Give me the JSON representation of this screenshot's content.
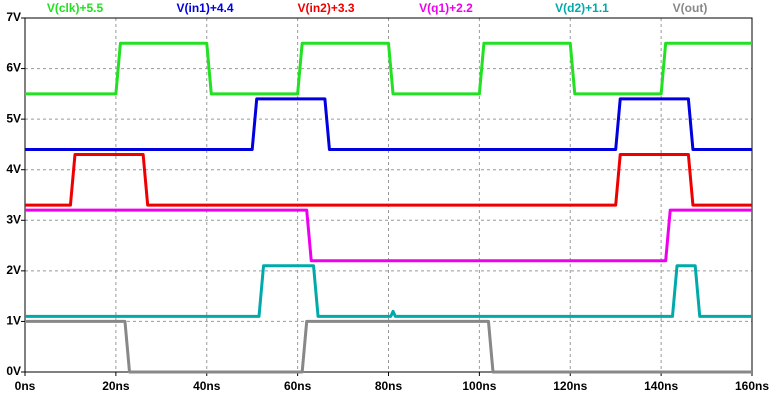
{
  "chart_data": {
    "type": "line",
    "xlim": [
      0,
      160
    ],
    "xticks": [
      {
        "value": 0,
        "label": "0ns"
      },
      {
        "value": 20,
        "label": "20ns"
      },
      {
        "value": 40,
        "label": "40ns"
      },
      {
        "value": 60,
        "label": "60ns"
      },
      {
        "value": 80,
        "label": "80ns"
      },
      {
        "value": 100,
        "label": "100ns"
      },
      {
        "value": 120,
        "label": "120ns"
      },
      {
        "value": 140,
        "label": "140ns"
      },
      {
        "value": 160,
        "label": "160ns"
      }
    ],
    "ylim": [
      0,
      7
    ],
    "yticks": [
      {
        "value": 0,
        "label": "0V"
      },
      {
        "value": 1,
        "label": "1V"
      },
      {
        "value": 2,
        "label": "2V"
      },
      {
        "value": 3,
        "label": "3V"
      },
      {
        "value": 4,
        "label": "4V"
      },
      {
        "value": 5,
        "label": "5V"
      },
      {
        "value": 6,
        "label": "6V"
      },
      {
        "value": 7,
        "label": "7V"
      }
    ],
    "grid": true,
    "series": [
      {
        "name": "V(clk)+5.5",
        "color": "#22e022",
        "x": [
          0,
          20,
          21,
          40,
          41,
          60,
          61,
          80,
          81,
          100,
          101,
          120,
          121,
          140,
          141,
          160
        ],
        "values": [
          5.5,
          5.5,
          6.5,
          6.5,
          5.5,
          5.5,
          6.5,
          6.5,
          5.5,
          5.5,
          6.5,
          6.5,
          5.5,
          5.5,
          6.5,
          6.5
        ]
      },
      {
        "name": "V(in1)+4.4",
        "color": "#0000e0",
        "x": [
          0,
          50,
          51,
          66,
          67,
          130,
          131,
          146,
          147,
          160
        ],
        "values": [
          4.4,
          4.4,
          5.4,
          5.4,
          4.4,
          4.4,
          5.4,
          5.4,
          4.4,
          4.4
        ]
      },
      {
        "name": "V(in2)+3.3",
        "color": "#ee0000",
        "x": [
          0,
          10,
          11,
          26,
          27,
          130,
          131,
          146,
          147,
          160
        ],
        "values": [
          3.3,
          3.3,
          4.3,
          4.3,
          3.3,
          3.3,
          4.3,
          4.3,
          3.3,
          3.3
        ]
      },
      {
        "name": "V(q1)+2.2",
        "color": "#ee00ee",
        "x": [
          0,
          62,
          63,
          141,
          142,
          160
        ],
        "values": [
          3.2,
          3.2,
          2.2,
          2.2,
          3.2,
          3.2
        ]
      },
      {
        "name": "V(d2)+1.1",
        "color": "#00aaaa",
        "x": [
          0,
          51.5,
          52.5,
          63.5,
          64.5,
          80.5,
          81,
          81.5,
          142.5,
          143.5,
          147.5,
          148.5,
          160
        ],
        "values": [
          1.1,
          1.1,
          2.1,
          2.1,
          1.1,
          1.1,
          1.2,
          1.1,
          1.1,
          2.1,
          2.1,
          1.1,
          1.1
        ]
      },
      {
        "name": "V(out)",
        "color": "#888888",
        "x": [
          0,
          22,
          23,
          61,
          62,
          102,
          103,
          160
        ],
        "values": [
          1.0,
          1.0,
          0,
          0,
          1.0,
          1.0,
          0,
          0
        ]
      }
    ]
  }
}
